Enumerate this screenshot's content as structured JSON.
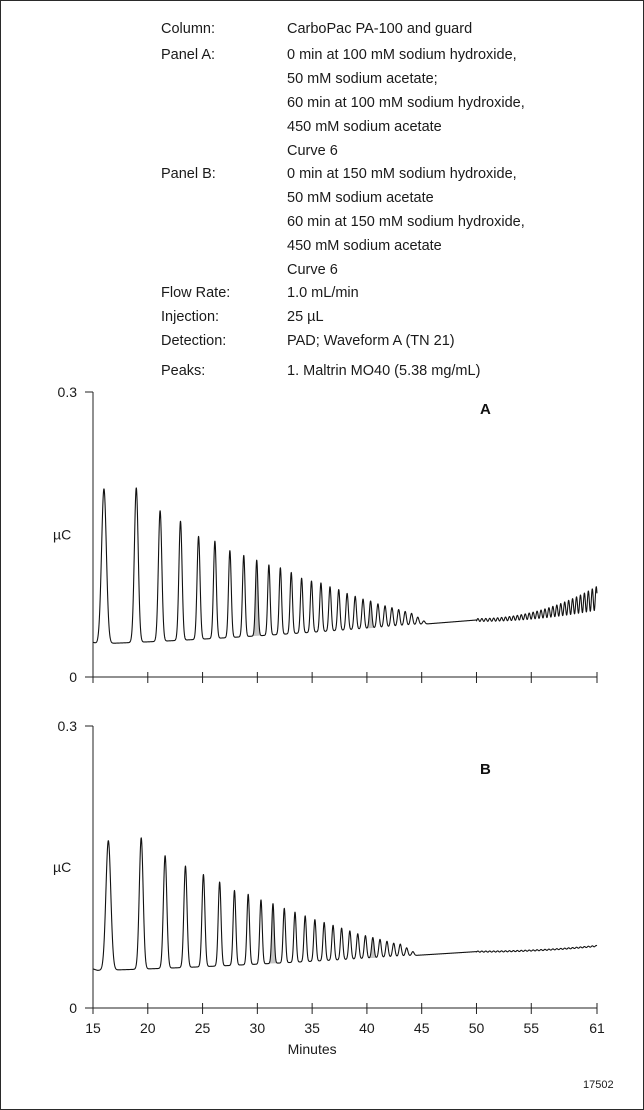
{
  "conditions": [
    {
      "label": "Column:",
      "lines": [
        "CarboPac PA-100 and guard"
      ]
    },
    {
      "label": "Panel A:",
      "lines": [
        "0 min at 100 mM sodium hydroxide,",
        "50 mM sodium acetate;",
        "60 min at 100 mM sodium hydroxide,",
        "450 mM sodium acetate",
        "Curve 6"
      ]
    },
    {
      "label": "Panel B:",
      "lines": [
        "0 min at 150 mM sodium hydroxide,",
        "50 mM sodium acetate",
        "60 min at 150 mM sodium hydroxide,",
        "450 mM sodium acetate",
        "Curve 6"
      ]
    },
    {
      "label": "Flow Rate:",
      "lines": [
        "1.0 mL/min"
      ]
    },
    {
      "label": "Injection:",
      "lines": [
        "25 µL"
      ]
    },
    {
      "label": "Detection:",
      "lines": [
        "PAD; Waveform A (TN 21)"
      ]
    },
    {
      "label": "Peaks:",
      "lines": [
        "1. Maltrin MO40 (5.38 mg/mL)"
      ]
    }
  ],
  "figure_id": "17502",
  "chart_data": [
    {
      "type": "line",
      "panel": "A",
      "ylabel": "µC",
      "ylim": [
        0,
        0.3
      ],
      "yticks": [
        "0",
        "0.3"
      ],
      "xlim": [
        15,
        61
      ],
      "line_color": "#111111",
      "shade_color": "#c4c4c4",
      "baseline_start": 0.035,
      "baseline_end_level": 0.083,
      "first_peak_x": 16.0,
      "peak_spacing_start": 2.95,
      "peak_spacing_end": 0.52,
      "peak_heights": [
        0.198,
        0.199,
        0.175,
        0.164,
        0.148,
        0.143,
        0.133,
        0.128,
        0.123,
        0.118,
        0.115,
        0.11,
        0.104,
        0.101,
        0.099,
        0.095,
        0.092,
        0.088,
        0.085,
        0.082,
        0.08,
        0.077,
        0.075,
        0.073,
        0.071,
        0.069,
        0.067
      ],
      "shaded_peaks": [
        29.4,
        40.1
      ]
    },
    {
      "type": "line",
      "panel": "B",
      "ylabel": "µC",
      "ylim": [
        0,
        0.3
      ],
      "yticks": [
        "0",
        "0.3"
      ],
      "xlim": [
        15,
        61
      ],
      "xticks": [
        "15",
        "20",
        "25",
        "30",
        "35",
        "40",
        "45",
        "50",
        "55",
        "61"
      ],
      "xlabel": "Minutes",
      "line_color": "#111111",
      "shade_color": "#c4c4c4",
      "baseline_start": 0.04,
      "baseline_end_level": 0.066,
      "first_peak_x": 16.4,
      "peak_spacing_start": 3.0,
      "peak_spacing_end": 0.5,
      "peak_heights": [
        0.178,
        0.181,
        0.162,
        0.151,
        0.142,
        0.134,
        0.125,
        0.121,
        0.115,
        0.111,
        0.106,
        0.102,
        0.098,
        0.094,
        0.091,
        0.088,
        0.085,
        0.082,
        0.079,
        0.077,
        0.075,
        0.073,
        0.071,
        0.069,
        0.068
      ],
      "shaded_peaks": [
        31.2,
        40.8
      ]
    }
  ]
}
